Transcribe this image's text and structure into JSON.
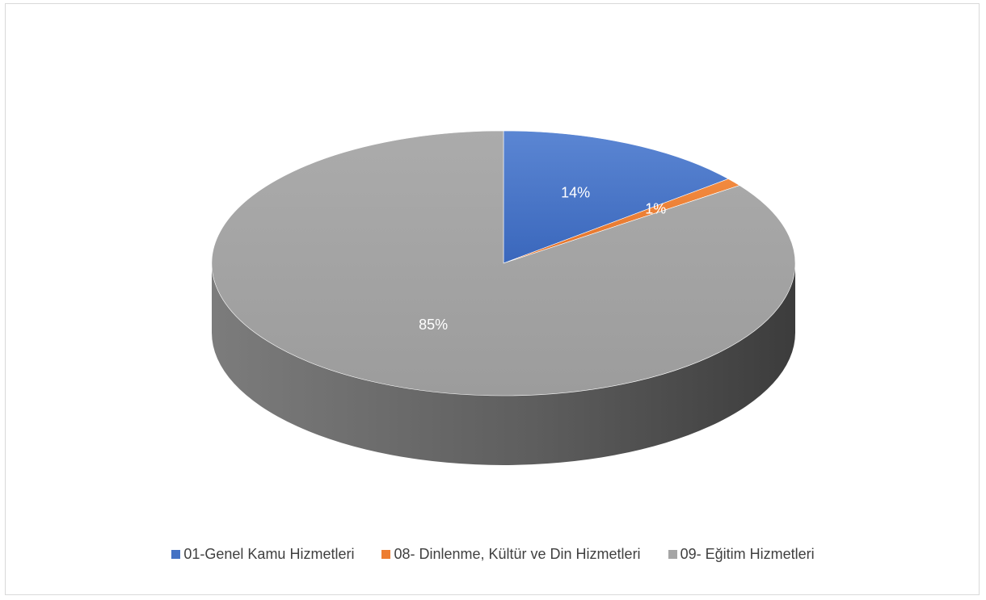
{
  "chart_data": {
    "type": "pie",
    "style": "3d",
    "title": "",
    "legend_position": "bottom",
    "slices": [
      {
        "name": "01-Genel Kamu Hizmetleri",
        "value": 14,
        "label": "14%",
        "color": "#4472c4"
      },
      {
        "name": "08- Dinlenme, Kültür ve Din Hizmetleri",
        "value": 1,
        "label": "1%",
        "color": "#ed7d31"
      },
      {
        "name": "09- Eğitim Hizmetleri",
        "value": 85,
        "label": "85%",
        "color": "#a5a5a5"
      }
    ]
  }
}
